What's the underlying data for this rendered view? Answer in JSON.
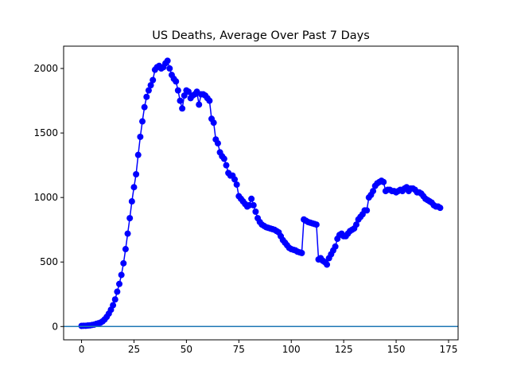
{
  "chart_data": {
    "type": "line",
    "title": "US Deaths, Average Over Past 7 Days",
    "x": [
      0,
      1,
      2,
      3,
      4,
      5,
      6,
      7,
      8,
      9,
      10,
      11,
      12,
      13,
      14,
      15,
      16,
      17,
      18,
      19,
      20,
      21,
      22,
      23,
      24,
      25,
      26,
      27,
      28,
      29,
      30,
      31,
      32,
      33,
      34,
      35,
      36,
      37,
      38,
      39,
      40,
      41,
      42,
      43,
      44,
      45,
      46,
      47,
      48,
      49,
      50,
      51,
      52,
      53,
      54,
      55,
      56,
      57,
      58,
      59,
      60,
      61,
      62,
      63,
      64,
      65,
      66,
      67,
      68,
      69,
      70,
      71,
      72,
      73,
      74,
      75,
      76,
      77,
      78,
      79,
      80,
      81,
      82,
      83,
      84,
      85,
      86,
      87,
      88,
      89,
      90,
      91,
      92,
      93,
      94,
      95,
      96,
      97,
      98,
      99,
      100,
      101,
      102,
      103,
      104,
      105,
      106,
      107,
      108,
      109,
      110,
      111,
      112,
      113,
      114,
      115,
      116,
      117,
      118,
      119,
      120,
      121,
      122,
      123,
      124,
      125,
      126,
      127,
      128,
      129,
      130,
      131,
      132,
      133,
      134,
      135,
      136,
      137,
      138,
      139,
      140,
      141,
      142,
      143,
      144,
      145,
      146,
      147,
      148,
      149,
      150,
      151,
      152,
      153,
      154,
      155,
      156,
      157,
      158,
      159,
      160,
      161,
      162,
      163,
      164,
      165,
      166,
      167,
      168,
      169,
      170,
      171
    ],
    "series": [
      {
        "name": "US deaths",
        "color": "#0000ff",
        "values": [
          5,
          6,
          6,
          8,
          9,
          12,
          15,
          20,
          25,
          30,
          40,
          55,
          75,
          100,
          130,
          165,
          210,
          270,
          330,
          400,
          490,
          600,
          720,
          840,
          970,
          1080,
          1180,
          1330,
          1470,
          1590,
          1700,
          1780,
          1830,
          1870,
          1910,
          1990,
          2010,
          2020,
          2000,
          2010,
          2040,
          2060,
          2000,
          1950,
          1920,
          1900,
          1830,
          1750,
          1690,
          1790,
          1830,
          1820,
          1770,
          1790,
          1800,
          1820,
          1720,
          1800,
          1800,
          1790,
          1770,
          1750,
          1610,
          1580,
          1450,
          1420,
          1350,
          1320,
          1300,
          1250,
          1190,
          1170,
          1170,
          1140,
          1100,
          1010,
          990,
          970,
          950,
          930,
          940,
          990,
          940,
          890,
          840,
          810,
          790,
          780,
          770,
          765,
          760,
          755,
          750,
          740,
          730,
          700,
          670,
          650,
          630,
          610,
          600,
          595,
          590,
          580,
          575,
          570,
          830,
          820,
          810,
          805,
          800,
          795,
          790,
          520,
          530,
          510,
          500,
          480,
          530,
          560,
          590,
          620,
          680,
          710,
          720,
          700,
          700,
          720,
          740,
          750,
          760,
          790,
          830,
          850,
          870,
          900,
          900,
          1000,
          1020,
          1050,
          1090,
          1110,
          1120,
          1130,
          1120,
          1050,
          1060,
          1060,
          1050,
          1050,
          1040,
          1050,
          1060,
          1050,
          1070,
          1080,
          1050,
          1070,
          1070,
          1060,
          1040,
          1040,
          1030,
          1010,
          990,
          980,
          970,
          960,
          940,
          930,
          930,
          920
        ]
      }
    ],
    "reference_line": {
      "y": 0,
      "color": "#1f77b4"
    },
    "xlim": [
      -8.55,
      179.55
    ],
    "xticks": [
      0,
      25,
      50,
      75,
      100,
      125,
      150,
      175
    ],
    "ylim": [
      -103,
      2173
    ],
    "yticks": [
      0,
      500,
      1000,
      1500,
      2000
    ]
  }
}
